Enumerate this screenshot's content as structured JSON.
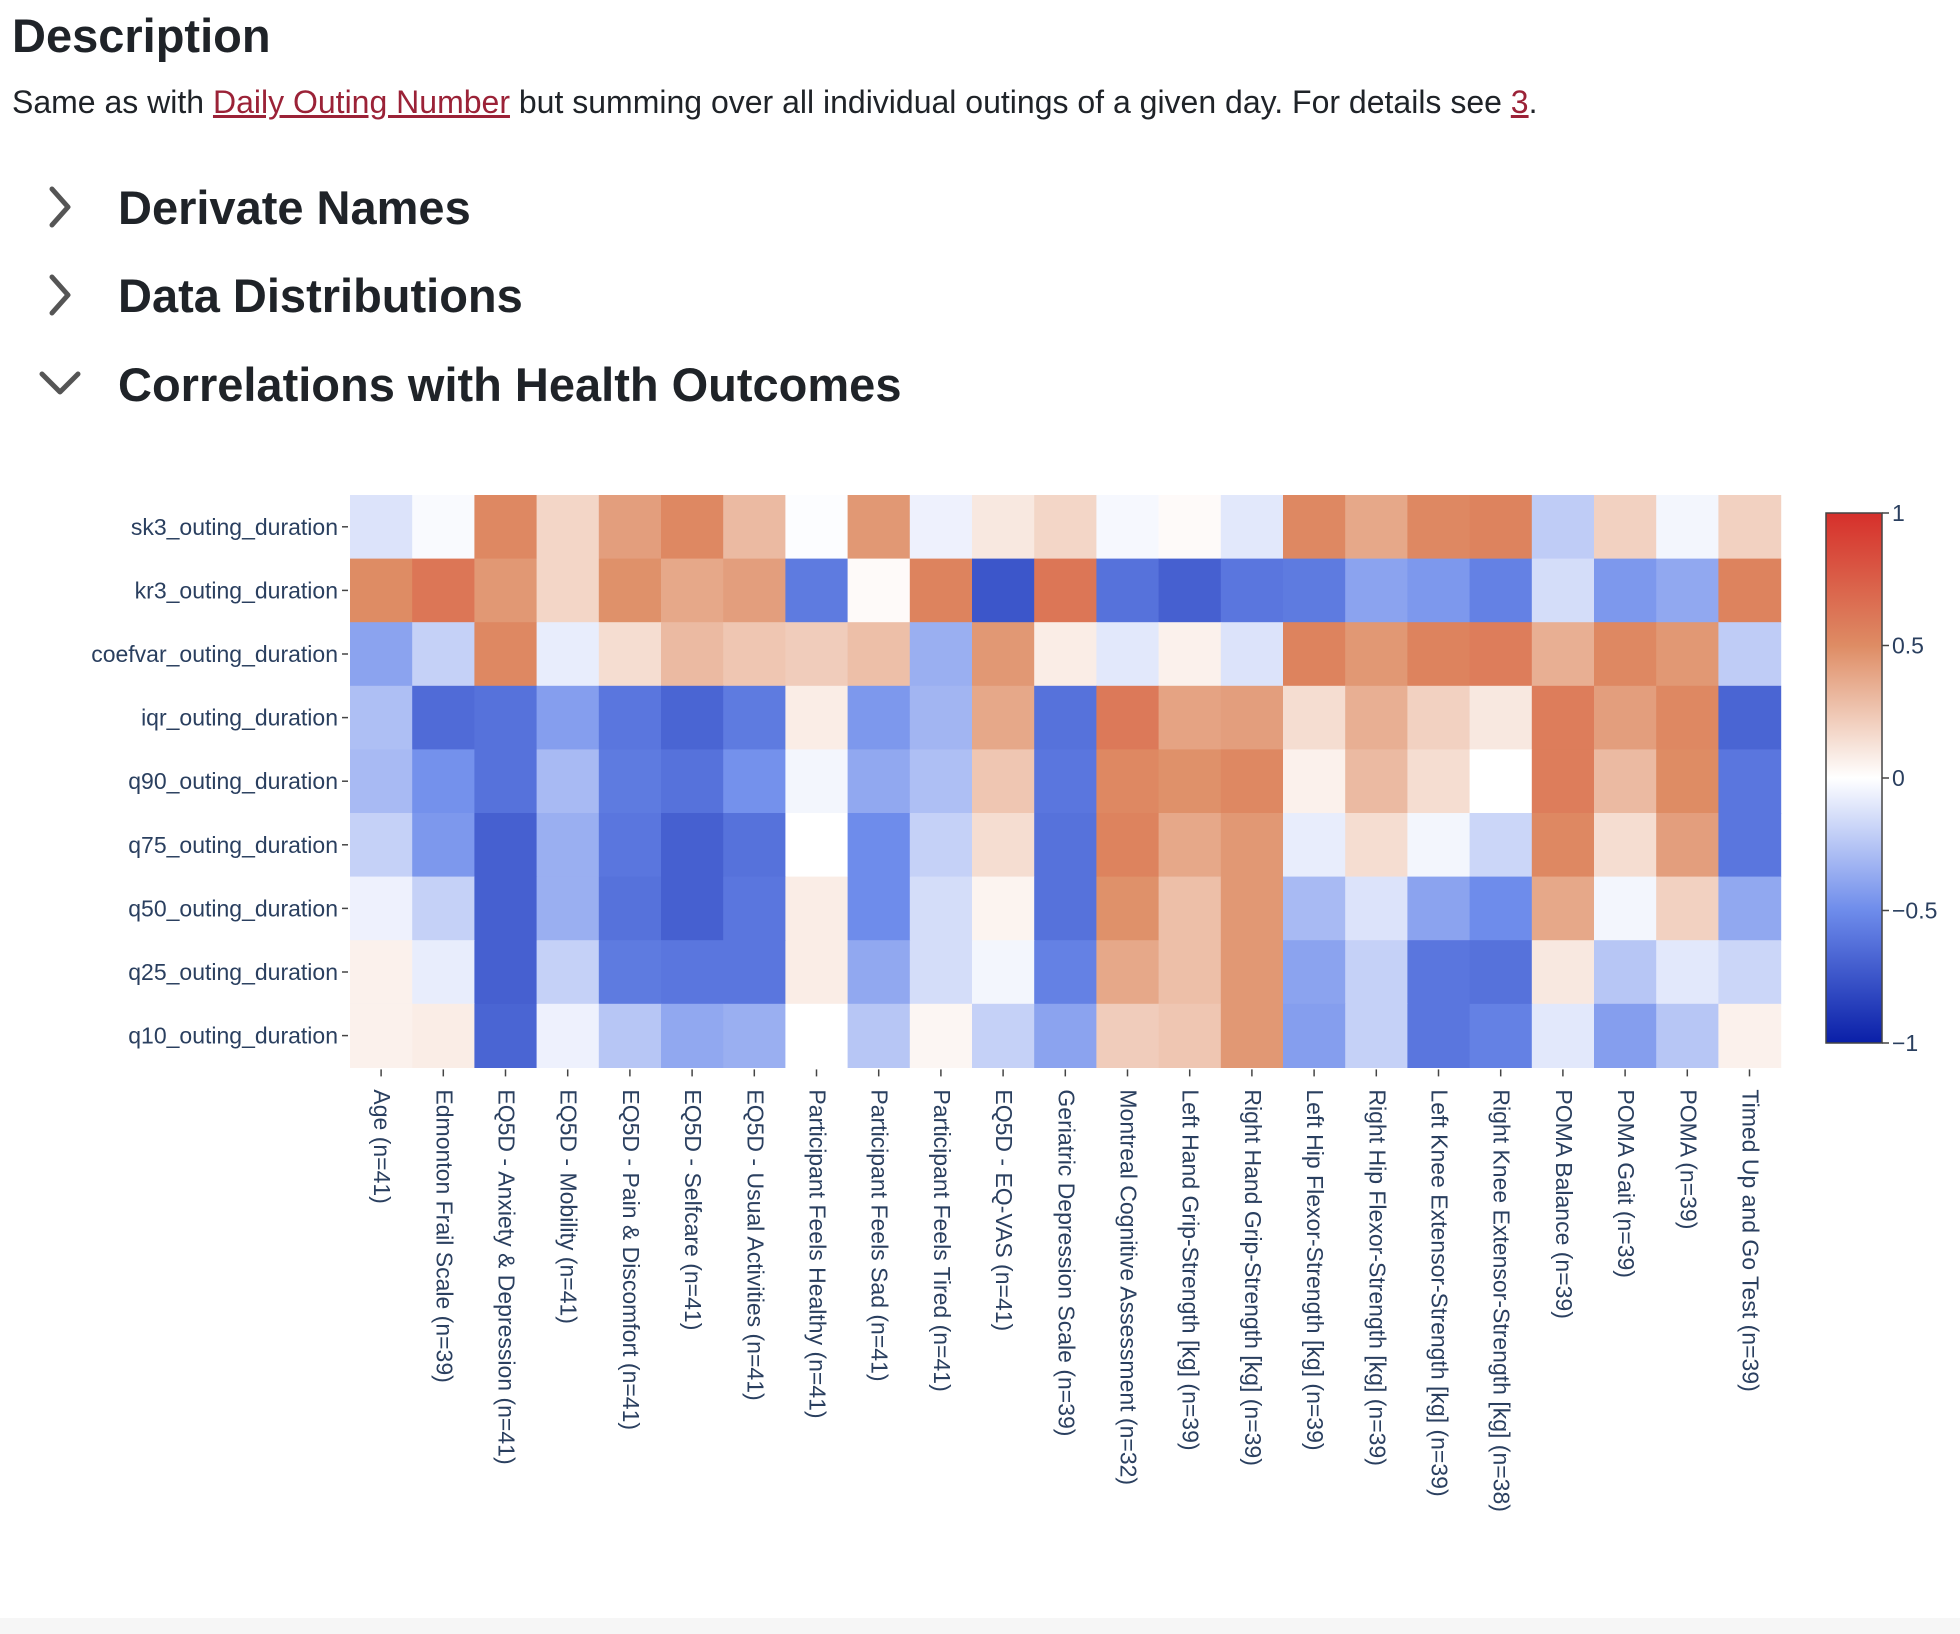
{
  "description": {
    "title": "Description",
    "text_before": "Same as with ",
    "link_text": "Daily Outing Number",
    "text_middle": " but summing over all individual outings of a given day. For details see ",
    "ref_text": "3",
    "text_after": "."
  },
  "sections": [
    {
      "label": "Derivate Names",
      "expanded": false,
      "icon": "chevron-right-icon"
    },
    {
      "label": "Data Distributions",
      "expanded": false,
      "icon": "chevron-right-icon"
    },
    {
      "label": "Correlations with Health Outcomes",
      "expanded": true,
      "icon": "chevron-down-icon"
    }
  ],
  "colors": {
    "accent_link": "#9b2237",
    "text": "#1f2328",
    "heat_negative": "#0a1fa8",
    "heat_zero": "#ffffff",
    "heat_positive": "#d62f2b"
  },
  "chart_data": {
    "type": "heatmap",
    "title": "",
    "colorscale": "blue-white-red (coolwarm)",
    "zmin": -1,
    "zmax": 1,
    "colorbar_ticks": [
      "1",
      "0.5",
      "0",
      "−0.5",
      "−1"
    ],
    "colorbar_values": [
      1,
      0.5,
      0,
      -0.5,
      -1
    ],
    "y_categories": [
      "sk3_outing_duration",
      "kr3_outing_duration",
      "coefvar_outing_duration",
      "iqr_outing_duration",
      "q90_outing_duration",
      "q75_outing_duration",
      "q50_outing_duration",
      "q25_outing_duration",
      "q10_outing_duration"
    ],
    "x_categories": [
      "Age (n=41)",
      "Edmonton Frail Scale (n=39)",
      "EQ5D - Anxiety & Depression (n=41)",
      "EQ5D - Mobility (n=41)",
      "EQ5D - Pain & Discomfort (n=41)",
      "EQ5D - Selfcare (n=41)",
      "EQ5D - Usual Activities (n=41)",
      "Participant Feels Healthy (n=41)",
      "Participant Feels Sad (n=41)",
      "Participant Feels Tired (n=41)",
      "EQ5D - EQ-VAS (n=41)",
      "Geriatric Depression Scale (n=39)",
      "Montreal Cognitive Assessment (n=32)",
      "Left Hand Grip-Strength [kg] (n=39)",
      "Right Hand Grip-Strength [kg] (n=39)",
      "Left Hip Flexor-Strength [kg] (n=39)",
      "Right Hip Flexor-Strength [kg] (n=39)",
      "Left Knee Extensor-Strength [kg] (n=39)",
      "Right Knee Extensor-Strength [kg] (n=38)",
      "POMA Balance (n=39)",
      "POMA Gait (n=39)",
      "POMA (n=39)",
      "Timed Up and Go Test (n=39)"
    ],
    "z": [
      [
        -0.12,
        -0.02,
        0.52,
        0.18,
        0.42,
        0.52,
        0.3,
        -0.01,
        0.45,
        -0.06,
        0.1,
        0.18,
        -0.03,
        0.02,
        -0.1,
        0.52,
        0.38,
        0.52,
        0.55,
        -0.22,
        0.2,
        -0.04,
        0.2
      ],
      [
        0.5,
        0.62,
        0.45,
        0.18,
        0.48,
        0.38,
        0.42,
        -0.58,
        0.02,
        0.55,
        -0.75,
        0.62,
        -0.62,
        -0.7,
        -0.6,
        -0.58,
        -0.4,
        -0.45,
        -0.55,
        -0.15,
        -0.45,
        -0.38,
        0.55
      ],
      [
        -0.4,
        -0.2,
        0.52,
        -0.08,
        0.15,
        0.3,
        0.25,
        0.22,
        0.28,
        -0.35,
        0.45,
        0.08,
        -0.1,
        0.06,
        -0.12,
        0.55,
        0.45,
        0.55,
        0.58,
        0.35,
        0.52,
        0.45,
        -0.22
      ],
      [
        -0.28,
        -0.65,
        -0.62,
        -0.42,
        -0.6,
        -0.68,
        -0.58,
        0.08,
        -0.45,
        -0.32,
        0.38,
        -0.62,
        0.6,
        0.4,
        0.42,
        0.15,
        0.35,
        0.2,
        0.1,
        0.58,
        0.42,
        0.52,
        -0.68
      ],
      [
        -0.3,
        -0.48,
        -0.62,
        -0.3,
        -0.58,
        -0.62,
        -0.48,
        -0.04,
        -0.38,
        -0.28,
        0.25,
        -0.6,
        0.52,
        0.48,
        0.52,
        0.06,
        0.3,
        0.15,
        0.0,
        0.58,
        0.3,
        0.5,
        -0.6
      ],
      [
        -0.2,
        -0.45,
        -0.7,
        -0.35,
        -0.6,
        -0.7,
        -0.62,
        0.0,
        -0.5,
        -0.2,
        0.15,
        -0.62,
        0.55,
        0.38,
        0.45,
        -0.08,
        0.15,
        -0.04,
        -0.18,
        0.52,
        0.15,
        0.42,
        -0.6
      ],
      [
        -0.06,
        -0.2,
        -0.7,
        -0.35,
        -0.62,
        -0.7,
        -0.6,
        0.08,
        -0.5,
        -0.15,
        0.05,
        -0.62,
        0.48,
        0.28,
        0.45,
        -0.3,
        -0.12,
        -0.4,
        -0.5,
        0.38,
        -0.04,
        0.2,
        -0.38
      ],
      [
        0.06,
        -0.08,
        -0.7,
        -0.2,
        -0.58,
        -0.6,
        -0.6,
        0.08,
        -0.38,
        -0.15,
        -0.04,
        -0.55,
        0.38,
        0.28,
        0.45,
        -0.4,
        -0.2,
        -0.6,
        -0.62,
        0.1,
        -0.25,
        -0.1,
        -0.18
      ],
      [
        0.06,
        0.08,
        -0.68,
        -0.06,
        -0.25,
        -0.38,
        -0.35,
        0.0,
        -0.25,
        0.04,
        -0.2,
        -0.4,
        0.22,
        0.25,
        0.45,
        -0.42,
        -0.2,
        -0.6,
        -0.55,
        -0.1,
        -0.42,
        -0.25,
        0.06
      ]
    ]
  }
}
